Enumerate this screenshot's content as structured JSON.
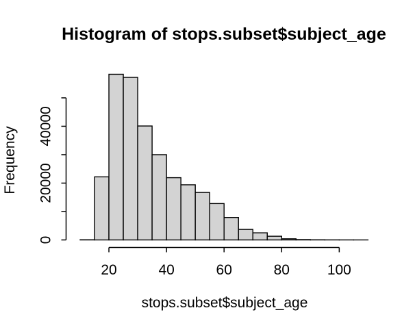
{
  "chart_data": {
    "type": "bar",
    "chart_kind": "histogram",
    "title": "Histogram of stops.subset$subject_age",
    "xlabel": "stops.subset$subject_age",
    "ylabel": "Frequency",
    "xlim": [
      10,
      110
    ],
    "ylim": [
      0,
      58300
    ],
    "bin_width": 5,
    "bin_starts": [
      10,
      15,
      20,
      25,
      30,
      35,
      40,
      45,
      50,
      55,
      60,
      65,
      70,
      75,
      80,
      85,
      90,
      95,
      100,
      105
    ],
    "counts": [
      60,
      22200,
      58300,
      57200,
      40100,
      30000,
      21900,
      19400,
      16700,
      12800,
      7900,
      3700,
      2500,
      1300,
      400,
      120,
      50,
      25,
      12,
      6
    ],
    "x_ticks": [
      20,
      40,
      60,
      80,
      100
    ],
    "y_ticks": [
      0,
      10000,
      20000,
      30000,
      40000,
      50000
    ],
    "y_labeled_ticks": [
      {
        "value": 0,
        "label": "0"
      },
      {
        "value": 20000,
        "label": "20000"
      },
      {
        "value": 40000,
        "label": "40000"
      }
    ],
    "grid": false,
    "legend": "none",
    "colors": {
      "bar_fill": "#d3d3d3",
      "bar_border": "#000000",
      "axis": "#000000",
      "text": "#000000",
      "background": "#ffffff"
    }
  }
}
